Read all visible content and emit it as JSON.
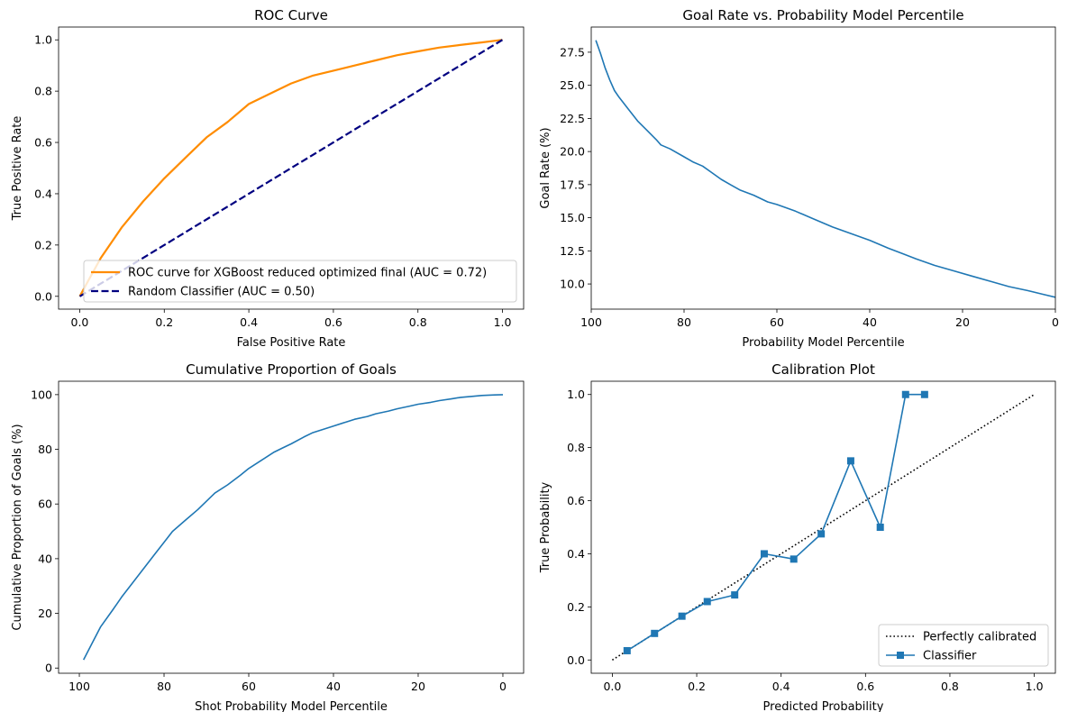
{
  "chart_data": [
    {
      "type": "line",
      "title": "ROC Curve",
      "xlabel": "False Positive Rate",
      "ylabel": "True Positive Rate",
      "xlim": [
        -0.05,
        1.05
      ],
      "ylim": [
        -0.05,
        1.05
      ],
      "xticks": [
        "0.0",
        "0.2",
        "0.4",
        "0.6",
        "0.8",
        "1.0"
      ],
      "yticks": [
        "0.0",
        "0.2",
        "0.4",
        "0.6",
        "0.8",
        "1.0"
      ],
      "legend_position": "lower-right",
      "series": [
        {
          "name": "ROC curve for XGBoost reduced optimized final (AUC = 0.72)",
          "color": "#ff8c00",
          "style": "solid",
          "x": [
            0.0,
            0.02,
            0.05,
            0.1,
            0.15,
            0.2,
            0.25,
            0.3,
            0.35,
            0.4,
            0.45,
            0.5,
            0.55,
            0.6,
            0.65,
            0.7,
            0.75,
            0.8,
            0.85,
            0.9,
            0.95,
            1.0
          ],
          "y": [
            0.0,
            0.06,
            0.15,
            0.27,
            0.37,
            0.46,
            0.54,
            0.62,
            0.68,
            0.75,
            0.79,
            0.83,
            0.86,
            0.88,
            0.9,
            0.92,
            0.94,
            0.955,
            0.97,
            0.98,
            0.99,
            1.0
          ]
        },
        {
          "name": "Random Classifier (AUC = 0.50)",
          "color": "#000080",
          "style": "dashed",
          "x": [
            0.0,
            1.0
          ],
          "y": [
            0.0,
            1.0
          ]
        }
      ]
    },
    {
      "type": "line",
      "title": "Goal Rate vs. Probability Model Percentile",
      "xlabel": "Probability Model Percentile",
      "ylabel": "Goal Rate (%)",
      "xlim": [
        100,
        0
      ],
      "ylim": [
        8.1,
        29.4
      ],
      "xticks": [
        "100",
        "80",
        "60",
        "40",
        "20",
        "0"
      ],
      "yticks": [
        "10.0",
        "12.5",
        "15.0",
        "17.5",
        "20.0",
        "22.5",
        "25.0",
        "27.5"
      ],
      "series": [
        {
          "name": "",
          "color": "#1f77b4",
          "style": "solid",
          "x": [
            99,
            98,
            97,
            96,
            95,
            94,
            92,
            90,
            88,
            86,
            85,
            83,
            80,
            78,
            76,
            74,
            72,
            70,
            68,
            65,
            62,
            60,
            56,
            52,
            48,
            44,
            40,
            36,
            33,
            30,
            26,
            22,
            18,
            14,
            10,
            6,
            3,
            0
          ],
          "y": [
            28.4,
            27.4,
            26.3,
            25.4,
            24.6,
            24.1,
            23.2,
            22.3,
            21.6,
            20.9,
            20.5,
            20.2,
            19.6,
            19.2,
            18.9,
            18.4,
            17.9,
            17.5,
            17.1,
            16.7,
            16.2,
            16.0,
            15.5,
            14.9,
            14.3,
            13.8,
            13.3,
            12.7,
            12.3,
            11.9,
            11.4,
            11.0,
            10.6,
            10.2,
            9.8,
            9.5,
            9.25,
            9.0
          ]
        }
      ]
    },
    {
      "type": "line",
      "title": "Cumulative Proportion of Goals",
      "xlabel": "Shot Probability Model Percentile",
      "ylabel": "Cumulative Proportion of Goals (%)",
      "xlim": [
        104.9,
        -4.9
      ],
      "ylim": [
        -1.9,
        104.9
      ],
      "xticks": [
        "100",
        "80",
        "60",
        "40",
        "20",
        "0"
      ],
      "yticks": [
        "0",
        "20",
        "40",
        "60",
        "80",
        "100"
      ],
      "series": [
        {
          "name": "",
          "color": "#1f77b4",
          "style": "solid",
          "x": [
            99,
            97,
            95,
            92,
            90,
            88,
            85,
            82,
            80,
            78,
            75,
            72,
            70,
            68,
            65,
            62,
            60,
            57,
            54,
            52,
            50,
            47,
            45,
            42,
            40,
            37,
            35,
            32,
            30,
            27,
            25,
            22,
            20,
            17,
            15,
            12,
            10,
            7,
            5,
            2,
            0
          ],
          "y": [
            3,
            9,
            15,
            21.5,
            26,
            30,
            36,
            42,
            46,
            50,
            54,
            58,
            61,
            64,
            67,
            70.5,
            73,
            76,
            79,
            80.5,
            82,
            84.5,
            86,
            87.5,
            88.5,
            90,
            91,
            92,
            93,
            94,
            94.8,
            95.8,
            96.5,
            97.2,
            97.8,
            98.5,
            99,
            99.4,
            99.7,
            99.9,
            100
          ]
        }
      ]
    },
    {
      "type": "line",
      "title": "Calibration Plot",
      "xlabel": "Predicted Probability",
      "ylabel": "True Probability",
      "xlim": [
        -0.05,
        1.05
      ],
      "ylim": [
        -0.05,
        1.05
      ],
      "xticks": [
        "0.0",
        "0.2",
        "0.4",
        "0.6",
        "0.8",
        "1.0"
      ],
      "yticks": [
        "0.0",
        "0.2",
        "0.4",
        "0.6",
        "0.8",
        "1.0"
      ],
      "legend_position": "lower-right",
      "series": [
        {
          "name": "Perfectly calibrated",
          "color": "#000000",
          "style": "dotted",
          "x": [
            0.0,
            1.0
          ],
          "y": [
            0.0,
            1.0
          ]
        },
        {
          "name": "Classifier",
          "color": "#1f77b4",
          "style": "solid-square-markers",
          "x": [
            0.035,
            0.1,
            0.165,
            0.225,
            0.29,
            0.36,
            0.43,
            0.495,
            0.565,
            0.635,
            0.695,
            0.74
          ],
          "y": [
            0.035,
            0.1,
            0.165,
            0.22,
            0.245,
            0.4,
            0.38,
            0.475,
            0.75,
            0.5,
            1.0,
            1.0
          ]
        }
      ]
    }
  ]
}
